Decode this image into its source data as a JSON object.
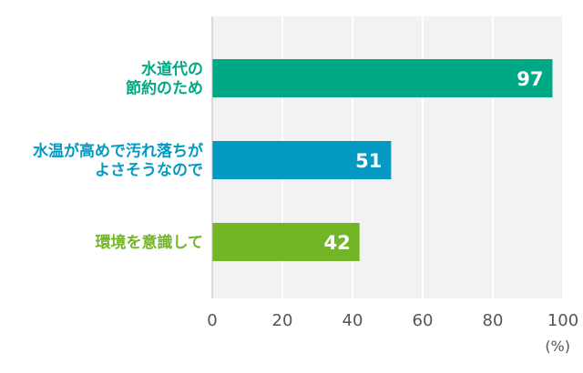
{
  "chart_data": {
    "type": "bar",
    "orientation": "horizontal",
    "categories": [
      [
        "水道代の",
        "節約のため"
      ],
      [
        "水温が高めで汚れ落ちが",
        "よさそうなので"
      ],
      [
        "環境を意識して"
      ]
    ],
    "values": [
      97,
      51,
      42
    ],
    "data_labels": [
      "97",
      "51",
      "42"
    ],
    "colors": [
      "#00a985",
      "#0399c2",
      "#72b627"
    ],
    "xlim": [
      0,
      100
    ],
    "x_ticks": [
      0,
      20,
      40,
      60,
      80,
      100
    ],
    "x_tick_labels": [
      "0",
      "20",
      "40",
      "60",
      "80",
      "100"
    ],
    "x_unit": "(%)",
    "grid": true,
    "legend": "none"
  }
}
